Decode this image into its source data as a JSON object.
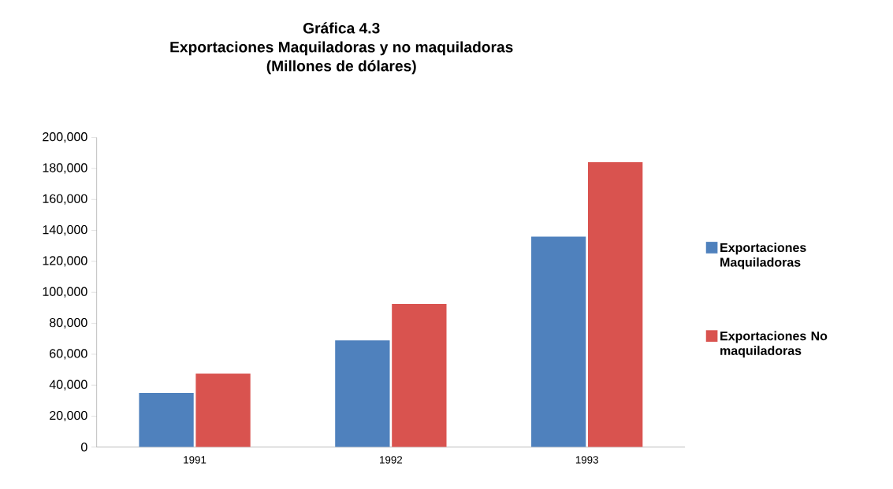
{
  "chart_data": {
    "type": "bar",
    "title": "Gráfica 4.3\nExportaciones Maquiladoras y no maquiladoras\n(Millones de dólares)",
    "categories": [
      "1991",
      "1992",
      "1993"
    ],
    "series": [
      {
        "name": "Exportaciones Maquiladoras",
        "color": "#4f81bd",
        "values": [
          35000,
          69000,
          136000
        ]
      },
      {
        "name": "Exportaciones No maquiladoras",
        "color": "#d9534f",
        "values": [
          47500,
          92500,
          184000
        ]
      }
    ],
    "ylim": [
      0,
      200000
    ],
    "yticks": [
      0,
      {
        "value": 20000,
        "label": "20,000"
      },
      {
        "value": 40000,
        "label": "40,000"
      },
      {
        "value": 60000,
        "label": "60,000"
      },
      {
        "value": 80000,
        "label": "80,000"
      },
      {
        "value": 100000,
        "label": "100,000"
      },
      {
        "value": 120000,
        "label": "120,000"
      },
      {
        "value": 140000,
        "label": "140,000"
      },
      {
        "value": 160000,
        "label": "160,000"
      },
      {
        "value": 180000,
        "label": "180,000"
      },
      {
        "value": 200000,
        "label": "200,000"
      }
    ],
    "grid": false,
    "legend": "right"
  }
}
